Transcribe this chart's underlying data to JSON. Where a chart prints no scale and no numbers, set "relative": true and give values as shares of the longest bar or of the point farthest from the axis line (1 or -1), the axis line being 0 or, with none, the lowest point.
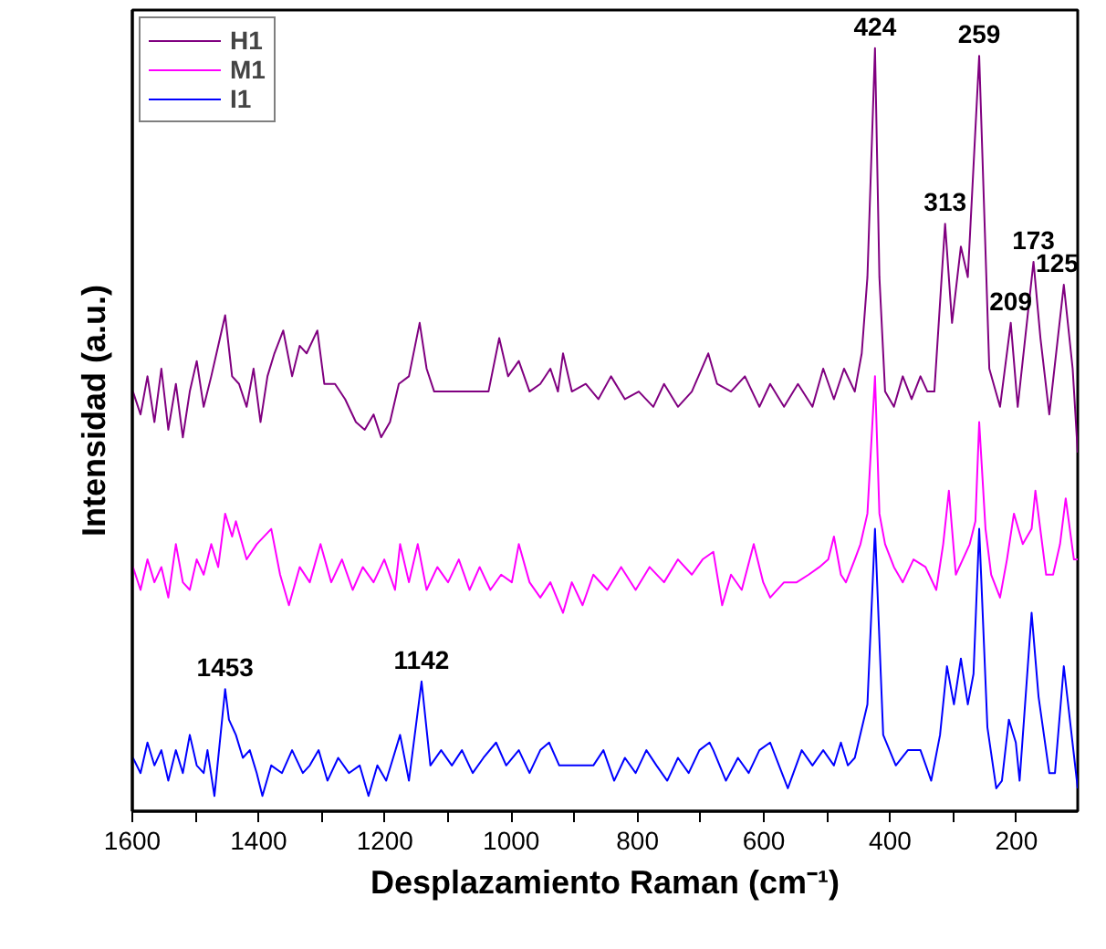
{
  "chart_data": {
    "type": "line",
    "relative": true,
    "xlabel": "Desplazamiento Raman (cm⁻¹)",
    "ylabel": "Intensidad (a.u.)",
    "xlim": [
      1600,
      103
    ],
    "xticks": [
      1600,
      {
        "value": 1500,
        "label": null
      },
      1400,
      {
        "value": 1300,
        "label": null
      },
      1200,
      {
        "value": 1100,
        "label": null
      },
      1000,
      {
        "value": 900,
        "label": null
      },
      800,
      {
        "value": 700,
        "label": null
      },
      600,
      {
        "value": 500,
        "label": null
      },
      400,
      {
        "value": 300,
        "label": null
      },
      200
    ],
    "grid": false,
    "legend": "top left",
    "series": [
      {
        "name": "H1",
        "color": "#800080",
        "x": [
          1599,
          1587,
          1576,
          1565,
          1554,
          1543,
          1531,
          1520,
          1509,
          1498,
          1487,
          1475,
          1464,
          1453,
          1442,
          1431,
          1419,
          1408,
          1397,
          1386,
          1375,
          1361,
          1347,
          1335,
          1324,
          1307,
          1296,
          1279,
          1263,
          1246,
          1232,
          1218,
          1206,
          1192,
          1178,
          1162,
          1145,
          1134,
          1122,
          1108,
          1086,
          1058,
          1036,
          1019,
          1005,
          988,
          971,
          954,
          938,
          926,
          918,
          904,
          882,
          862,
          842,
          820,
          798,
          775,
          758,
          736,
          714,
          688,
          674,
          652,
          630,
          607,
          590,
          568,
          546,
          523,
          506,
          489,
          473,
          456,
          445,
          436,
          424,
          417,
          408,
          394,
          380,
          366,
          352,
          341,
          330,
          313,
          302,
          288,
          277,
          259,
          243,
          226,
          209,
          198,
          173,
          162,
          148,
          125,
          111,
          103
        ],
        "values": [
          0.55,
          0.52,
          0.57,
          0.51,
          0.58,
          0.5,
          0.56,
          0.49,
          0.55,
          0.59,
          0.53,
          0.57,
          0.61,
          0.65,
          0.57,
          0.56,
          0.53,
          0.58,
          0.51,
          0.57,
          0.6,
          0.63,
          0.57,
          0.61,
          0.6,
          0.63,
          0.56,
          0.56,
          0.54,
          0.51,
          0.5,
          0.52,
          0.49,
          0.51,
          0.56,
          0.57,
          0.64,
          0.58,
          0.55,
          0.55,
          0.55,
          0.55,
          0.55,
          0.62,
          0.57,
          0.59,
          0.55,
          0.56,
          0.58,
          0.55,
          0.6,
          0.55,
          0.56,
          0.54,
          0.57,
          0.54,
          0.55,
          0.53,
          0.56,
          0.53,
          0.55,
          0.6,
          0.56,
          0.55,
          0.57,
          0.53,
          0.56,
          0.53,
          0.56,
          0.53,
          0.58,
          0.54,
          0.58,
          0.55,
          0.6,
          0.7,
          1.0,
          0.7,
          0.55,
          0.53,
          0.57,
          0.54,
          0.57,
          0.55,
          0.55,
          0.77,
          0.64,
          0.74,
          0.7,
          0.99,
          0.58,
          0.53,
          0.64,
          0.53,
          0.72,
          0.62,
          0.52,
          0.69,
          0.58,
          0.47
        ]
      },
      {
        "name": "M1",
        "color": "#ff00ff",
        "x": [
          1599,
          1587,
          1576,
          1565,
          1554,
          1543,
          1531,
          1520,
          1509,
          1498,
          1487,
          1475,
          1464,
          1453,
          1442,
          1436,
          1419,
          1403,
          1380,
          1366,
          1352,
          1335,
          1319,
          1302,
          1285,
          1268,
          1251,
          1235,
          1218,
          1201,
          1184,
          1176,
          1162,
          1148,
          1134,
          1117,
          1100,
          1083,
          1066,
          1050,
          1033,
          1016,
          999,
          988,
          971,
          954,
          938,
          918,
          904,
          887,
          870,
          848,
          826,
          803,
          781,
          758,
          736,
          714,
          697,
          680,
          666,
          652,
          635,
          616,
          601,
          590,
          568,
          548,
          529,
          512,
          498,
          489,
          478,
          470,
          456,
          447,
          436,
          424,
          417,
          408,
          394,
          380,
          363,
          344,
          327,
          316,
          307,
          296,
          285,
          274,
          265,
          259,
          249,
          240,
          226,
          215,
          204,
          190,
          176,
          170,
          153,
          142,
          131,
          122,
          109,
          103
        ],
        "values": [
          0.32,
          0.29,
          0.33,
          0.3,
          0.32,
          0.28,
          0.35,
          0.3,
          0.29,
          0.33,
          0.31,
          0.35,
          0.32,
          0.39,
          0.36,
          0.38,
          0.33,
          0.35,
          0.37,
          0.31,
          0.27,
          0.32,
          0.3,
          0.35,
          0.3,
          0.33,
          0.29,
          0.32,
          0.3,
          0.33,
          0.29,
          0.35,
          0.3,
          0.35,
          0.29,
          0.32,
          0.3,
          0.33,
          0.29,
          0.32,
          0.29,
          0.31,
          0.3,
          0.35,
          0.3,
          0.28,
          0.3,
          0.26,
          0.3,
          0.27,
          0.31,
          0.29,
          0.32,
          0.29,
          0.32,
          0.3,
          0.33,
          0.31,
          0.33,
          0.34,
          0.27,
          0.31,
          0.29,
          0.35,
          0.3,
          0.28,
          0.3,
          0.3,
          0.31,
          0.32,
          0.33,
          0.36,
          0.31,
          0.3,
          0.33,
          0.35,
          0.39,
          0.57,
          0.39,
          0.35,
          0.32,
          0.3,
          0.33,
          0.32,
          0.29,
          0.35,
          0.42,
          0.31,
          0.33,
          0.35,
          0.38,
          0.51,
          0.37,
          0.31,
          0.28,
          0.33,
          0.39,
          0.35,
          0.37,
          0.42,
          0.31,
          0.31,
          0.35,
          0.41,
          0.33,
          0.33
        ]
      },
      {
        "name": "I1",
        "color": "#0000ff",
        "x": [
          1599,
          1587,
          1576,
          1565,
          1554,
          1543,
          1531,
          1520,
          1509,
          1498,
          1487,
          1481,
          1470,
          1453,
          1447,
          1436,
          1425,
          1414,
          1403,
          1394,
          1380,
          1363,
          1347,
          1330,
          1319,
          1305,
          1291,
          1274,
          1257,
          1240,
          1226,
          1212,
          1198,
          1187,
          1176,
          1162,
          1142,
          1128,
          1111,
          1094,
          1078,
          1061,
          1044,
          1024,
          1008,
          988,
          971,
          954,
          940,
          924,
          870,
          854,
          837,
          820,
          803,
          786,
          770,
          753,
          736,
          719,
          702,
          686,
          680,
          660,
          641,
          624,
          607,
          590,
          576,
          562,
          540,
          523,
          506,
          489,
          478,
          467,
          456,
          436,
          424,
          411,
          391,
          372,
          352,
          335,
          321,
          310,
          299,
          288,
          277,
          268,
          259,
          246,
          232,
          223,
          212,
          201,
          195,
          176,
          165,
          148,
          139,
          125,
          114,
          103
        ],
        "values": [
          0.07,
          0.05,
          0.09,
          0.06,
          0.08,
          0.04,
          0.08,
          0.05,
          0.1,
          0.06,
          0.05,
          0.08,
          0.02,
          0.16,
          0.12,
          0.1,
          0.07,
          0.08,
          0.05,
          0.02,
          0.06,
          0.05,
          0.08,
          0.05,
          0.06,
          0.08,
          0.04,
          0.07,
          0.05,
          0.06,
          0.02,
          0.06,
          0.04,
          0.07,
          0.1,
          0.04,
          0.17,
          0.06,
          0.08,
          0.06,
          0.08,
          0.05,
          0.07,
          0.09,
          0.06,
          0.08,
          0.05,
          0.08,
          0.09,
          0.06,
          0.06,
          0.08,
          0.04,
          0.07,
          0.05,
          0.08,
          0.06,
          0.04,
          0.07,
          0.05,
          0.08,
          0.09,
          0.08,
          0.04,
          0.07,
          0.05,
          0.08,
          0.09,
          0.06,
          0.03,
          0.08,
          0.06,
          0.08,
          0.06,
          0.09,
          0.06,
          0.07,
          0.14,
          0.37,
          0.1,
          0.06,
          0.08,
          0.08,
          0.04,
          0.1,
          0.19,
          0.14,
          0.2,
          0.14,
          0.18,
          0.37,
          0.11,
          0.03,
          0.04,
          0.12,
          0.09,
          0.04,
          0.26,
          0.15,
          0.05,
          0.05,
          0.19,
          0.11,
          0.03
        ]
      }
    ],
    "annotations": [
      {
        "text": "424",
        "x": 424,
        "y": 1.0
      },
      {
        "text": "259",
        "x": 259,
        "y": 0.99
      },
      {
        "text": "313",
        "x": 313,
        "y": 0.77
      },
      {
        "text": "173",
        "x": 173,
        "y": 0.72
      },
      {
        "text": "209",
        "x": 209,
        "y": 0.64
      },
      {
        "text": "125",
        "x": 125,
        "y": 0.69
      },
      {
        "text": "1453",
        "x": 1453,
        "y": 0.16
      },
      {
        "text": "1142",
        "x": 1142,
        "y": 0.17
      }
    ]
  }
}
